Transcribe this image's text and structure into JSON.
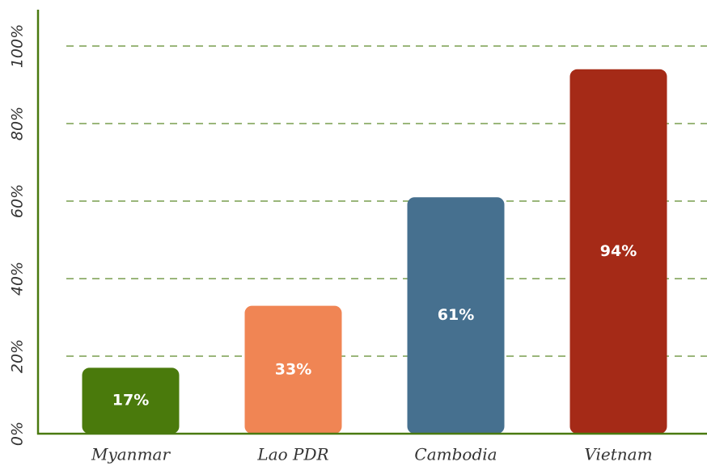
{
  "chart_data": {
    "type": "bar",
    "categories": [
      "Myanmar",
      "Lao PDR",
      "Cambodia",
      "Vietnam"
    ],
    "values": [
      17,
      33,
      61,
      94
    ],
    "value_labels": [
      "17%",
      "33%",
      "61%",
      "94%"
    ],
    "colors": [
      "#4a7a0c",
      "#f08554",
      "#46708f",
      "#a52a17"
    ],
    "ylim": [
      0,
      100
    ],
    "yticks": [
      {
        "value": 0,
        "label": "0%"
      },
      {
        "value": 20,
        "label": "20%"
      },
      {
        "value": 40,
        "label": "40%"
      },
      {
        "value": 60,
        "label": "60%"
      },
      {
        "value": 80,
        "label": "80%"
      },
      {
        "value": 100,
        "label": "100%"
      }
    ],
    "grid": true
  }
}
